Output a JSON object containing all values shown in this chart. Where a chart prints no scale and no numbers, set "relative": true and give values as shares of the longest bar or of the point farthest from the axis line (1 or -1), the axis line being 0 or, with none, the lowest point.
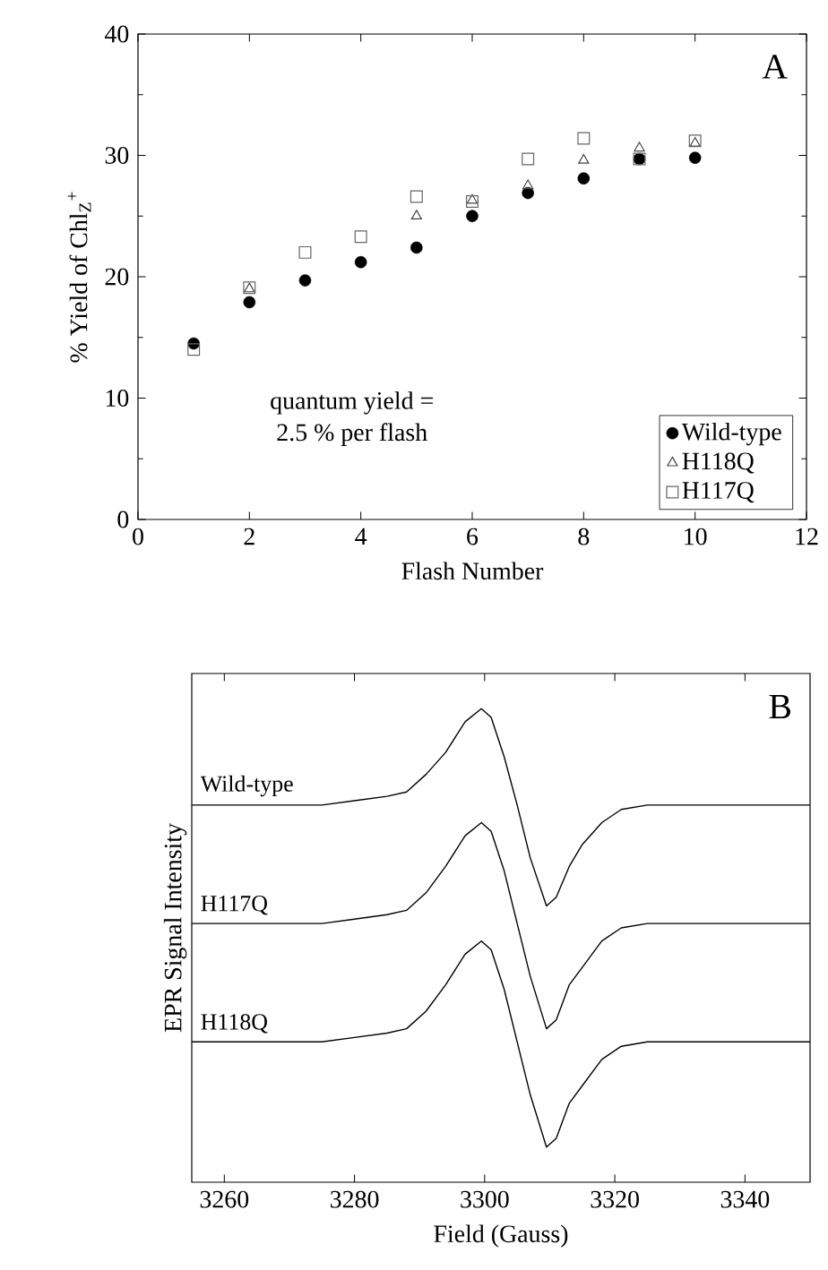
{
  "chart_data": [
    {
      "type": "scatter",
      "xlabel": "Flash Number",
      "ylabel": "% Yield of Chl$_{Z}$$^{+}$",
      "annotations": [
        "A",
        "quantum yield =",
        "2.5 % per flash"
      ],
      "x": [
        1,
        2,
        3,
        4,
        5,
        6,
        7,
        8,
        9,
        10
      ],
      "series": [
        {
          "name": "Wild-type",
          "color": "#000000",
          "marker": "circle",
          "values": [
            14.5,
            17.9,
            19.7,
            21.2,
            22.4,
            25.0,
            26.9,
            28.1,
            29.7,
            29.8
          ]
        },
        {
          "name": "H118Q",
          "color": "#444444",
          "marker": "triangle",
          "values": [
            null,
            19.0,
            null,
            null,
            25.0,
            26.3,
            27.5,
            29.6,
            30.6,
            31.0
          ]
        },
        {
          "name": "H117Q",
          "color": "#666666",
          "marker": "square",
          "values": [
            14.0,
            19.1,
            22.0,
            23.3,
            26.6,
            26.2,
            29.7,
            31.4,
            29.7,
            31.2
          ]
        }
      ],
      "xlim": [
        0,
        12
      ],
      "xticks": [
        0,
        2,
        4,
        6,
        8,
        10,
        12
      ],
      "ylim": [
        0,
        40
      ],
      "yticks": [
        0,
        10,
        20,
        30,
        40
      ],
      "legend": "bottom right",
      "grid": false
    },
    {
      "type": "line",
      "xlabel": "Field (Gauss)",
      "ylabel": "EPR Signal Intensity",
      "annotations": [
        "B"
      ],
      "relative": true,
      "tick_labels": "x",
      "x": [
        3255,
        3260,
        3265,
        3270,
        3275,
        3280,
        3285,
        3288,
        3291,
        3294,
        3297,
        3299.5,
        3301,
        3303,
        3305,
        3307,
        3309.5,
        3311,
        3313,
        3315,
        3318,
        3321,
        3325,
        3330,
        3335,
        3340,
        3345,
        3350
      ],
      "series": [
        {
          "name": "Wild-type",
          "color": "#000000",
          "values": [
            0.78,
            0.78,
            0.78,
            0.78,
            0.78,
            0.79,
            0.8,
            0.81,
            0.85,
            0.9,
            0.97,
            1.0,
            0.98,
            0.89,
            0.78,
            0.66,
            0.55,
            0.57,
            0.64,
            0.69,
            0.74,
            0.77,
            0.78,
            0.78,
            0.78,
            0.78,
            0.78,
            0.78
          ]
        },
        {
          "name": "H117Q",
          "color": "#000000",
          "values": [
            0.51,
            0.51,
            0.51,
            0.51,
            0.51,
            0.52,
            0.53,
            0.54,
            0.58,
            0.64,
            0.71,
            0.74,
            0.72,
            0.63,
            0.51,
            0.39,
            0.27,
            0.29,
            0.37,
            0.41,
            0.47,
            0.5,
            0.51,
            0.51,
            0.51,
            0.51,
            0.51,
            0.51
          ]
        },
        {
          "name": "H118Q",
          "color": "#000000",
          "values": [
            0.24,
            0.24,
            0.24,
            0.24,
            0.24,
            0.25,
            0.26,
            0.27,
            0.31,
            0.37,
            0.44,
            0.47,
            0.45,
            0.36,
            0.24,
            0.12,
            0.0,
            0.02,
            0.1,
            0.14,
            0.2,
            0.23,
            0.24,
            0.24,
            0.24,
            0.24,
            0.24,
            0.24
          ]
        }
      ],
      "xlim": [
        3255,
        3350
      ],
      "xticks": [
        3260,
        3280,
        3300,
        3320,
        3340
      ],
      "line_style": "solid",
      "marker": "none"
    }
  ]
}
